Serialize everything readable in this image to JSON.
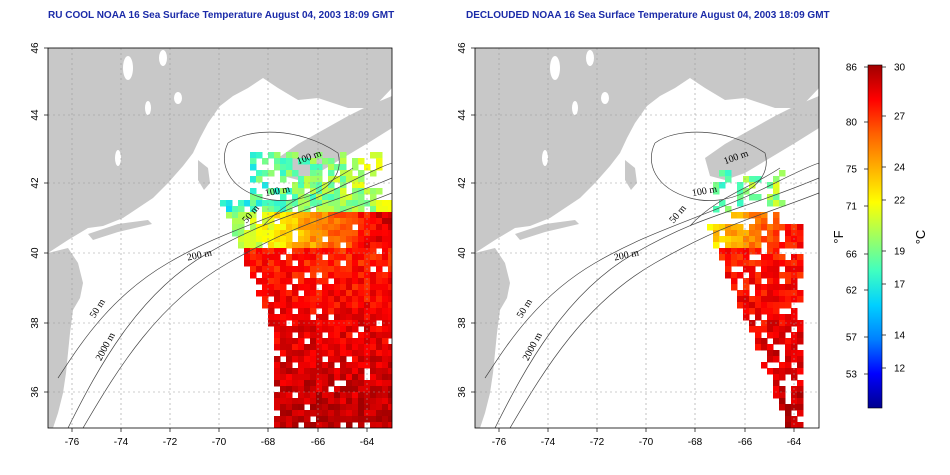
{
  "panels": [
    {
      "id": "left",
      "title": "RU COOL NOAA 16 Sea Surface Temperature August 04, 2003 18:09 GMT",
      "variant": "raw",
      "contour_labels": [
        "100 m",
        "100 m",
        "50 m",
        "200 m",
        "50 m",
        "2000 m"
      ]
    },
    {
      "id": "right",
      "title": "DECLOUDED NOAA 16 Sea Surface Temperature August 04, 2003 18:09 GMT",
      "variant": "declouded",
      "contour_labels": [
        "100 m",
        "100 m",
        "50 m",
        "200 m",
        "50 m",
        "2000 m"
      ]
    }
  ],
  "axes": {
    "lon_ticks": [
      "-76",
      "-74",
      "-72",
      "-70",
      "-68",
      "-66",
      "-64"
    ],
    "lat_ticks": [
      "46",
      "44",
      "42",
      "40",
      "38",
      "36"
    ]
  },
  "colorbar": {
    "fahrenheit_label": "°F",
    "celsius_label": "°C",
    "fahrenheit_ticks": [
      "86",
      "80",
      "75",
      "71",
      "66",
      "62",
      "57",
      "53"
    ],
    "celsius_ticks": [
      "30",
      "27",
      "24",
      "22",
      "19",
      "17",
      "14",
      "12"
    ],
    "range_celsius": [
      9.5,
      30
    ],
    "colors": [
      "#00008f",
      "#0000ff",
      "#0080ff",
      "#00d0ff",
      "#40ffc0",
      "#a0ff60",
      "#ffff00",
      "#ffb000",
      "#ff6000",
      "#ff0000",
      "#a00000"
    ]
  },
  "style": {
    "land_color": "#c8c8c8",
    "ocean_color": "#ffffff",
    "title_color": "#1a2aa8"
  }
}
